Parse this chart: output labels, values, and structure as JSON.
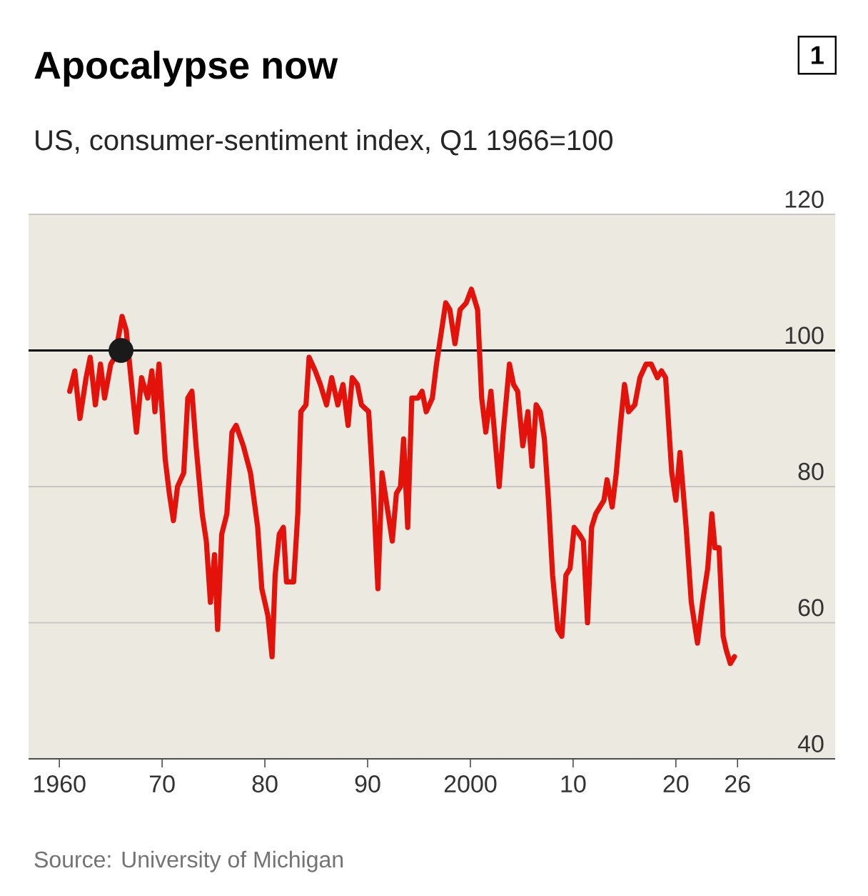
{
  "chart_data": {
    "type": "line",
    "title": "Apocalypse now",
    "subtitle": "US, consumer-sentiment index, Q1 1966=100",
    "annotations": [
      "1",
      "Source: University of Michigan"
    ],
    "xlim": [
      1957,
      2035.5
    ],
    "ylim": [
      40,
      120
    ],
    "xticks": [
      1960,
      {
        "value": 1970,
        "label": "70"
      },
      {
        "value": 1980,
        "label": "80"
      },
      {
        "value": 1990,
        "label": "90"
      },
      2000,
      {
        "value": 2010,
        "label": "10"
      },
      {
        "value": 2020,
        "label": "20"
      },
      {
        "value": 2026,
        "label": "26"
      }
    ],
    "yticks": [
      40,
      60,
      80,
      100,
      120
    ],
    "grid": "y",
    "marker": "none",
    "line_style": "solid",
    "ref_lines": [
      {
        "axis": "y",
        "value": 100,
        "color": "#000000"
      }
    ],
    "series": [
      {
        "color": "#e3120b",
        "x": [
          1961.0,
          1961.5,
          1962,
          1962.6,
          1963,
          1963.5,
          1964,
          1964.4,
          1965,
          1965.4,
          1966.1,
          1966.5,
          1967.5,
          1968,
          1968.6,
          1969,
          1969.3,
          1969.7,
          1970.3,
          1970.7,
          1971.1,
          1971.5,
          1972.1,
          1972.5,
          1972.9,
          1973.3,
          1973.9,
          1974.3,
          1974.7,
          1975.1,
          1975.4,
          1975.8,
          1976.3,
          1976.8,
          1977.2,
          1977.9,
          1978.6,
          1979.3,
          1979.7,
          1980.3,
          1980.7,
          1981,
          1981.4,
          1981.8,
          1982.1,
          1982.8,
          1983.2,
          1983.5,
          1984,
          1984.3,
          1984.9,
          1985.4,
          1986,
          1986.5,
          1987.1,
          1987.6,
          1988.1,
          1988.5,
          1989,
          1989.4,
          1990.1,
          1990.6,
          1991,
          1991.4,
          1991.8,
          1992.4,
          1992.8,
          1993.2,
          1993.5,
          1993.9,
          1994.3,
          1994.9,
          1995.3,
          1995.7,
          1996.3,
          1996.7,
          1997.1,
          1997.6,
          1998,
          1998.5,
          1999,
          1999.6,
          2000.1,
          2000.7,
          2001.1,
          2001.5,
          2002,
          2002.4,
          2002.8,
          2003.2,
          2003.8,
          2004.2,
          2004.6,
          2005.1,
          2005.6,
          2006,
          2006.4,
          2006.8,
          2007.2,
          2007.6,
          2008,
          2008.5,
          2008.9,
          2009.3,
          2009.7,
          2010.1,
          2010.6,
          2011,
          2011.4,
          2011.8,
          2012.2,
          2012.6,
          2013,
          2013.3,
          2013.8,
          2014.2,
          2014.6,
          2015,
          2015.4,
          2016,
          2016.5,
          2017.1,
          2017.6,
          2018.2,
          2018.6,
          2019,
          2019.6,
          2020,
          2020.4,
          2021,
          2021.5,
          2022.1,
          2022.6,
          2023.1,
          2023.5,
          2023.8,
          2024.2,
          2024.6,
          2024.9,
          2025.3,
          2025.7
        ],
        "values": [
          94,
          97,
          90,
          96,
          99,
          92,
          98,
          93,
          98,
          99,
          105,
          103,
          88,
          96,
          93,
          97,
          91,
          98,
          84,
          79,
          75,
          80,
          82,
          93,
          94,
          86,
          76,
          72,
          63,
          70,
          59,
          73,
          76,
          88,
          89,
          86,
          82,
          74,
          65,
          61,
          55,
          67,
          73,
          74,
          66,
          66,
          76,
          91,
          92,
          99,
          97,
          95,
          92,
          96,
          92,
          95,
          89,
          96,
          95,
          92,
          91,
          78,
          65,
          82,
          78,
          72,
          79,
          80,
          87,
          74,
          93,
          93,
          94,
          91,
          93,
          98,
          102,
          107,
          106,
          101,
          106,
          107,
          109,
          106,
          93,
          88,
          94,
          87,
          80,
          88,
          98,
          95,
          94,
          86,
          91,
          83,
          92,
          91,
          87,
          78,
          67,
          59,
          58,
          67,
          68,
          74,
          73,
          72,
          60,
          74,
          76,
          77,
          78,
          81,
          77,
          82,
          89,
          95,
          91,
          92,
          96,
          98,
          98,
          96,
          97,
          96,
          82,
          78,
          85,
          74,
          63,
          57,
          63,
          68,
          76,
          71,
          71,
          58,
          56,
          54,
          55
        ]
      },
      {
        "type": "scatter",
        "color": "#1a1a1a",
        "x": [
          1966
        ],
        "values": [
          100
        ],
        "marker": "circle"
      }
    ]
  }
}
